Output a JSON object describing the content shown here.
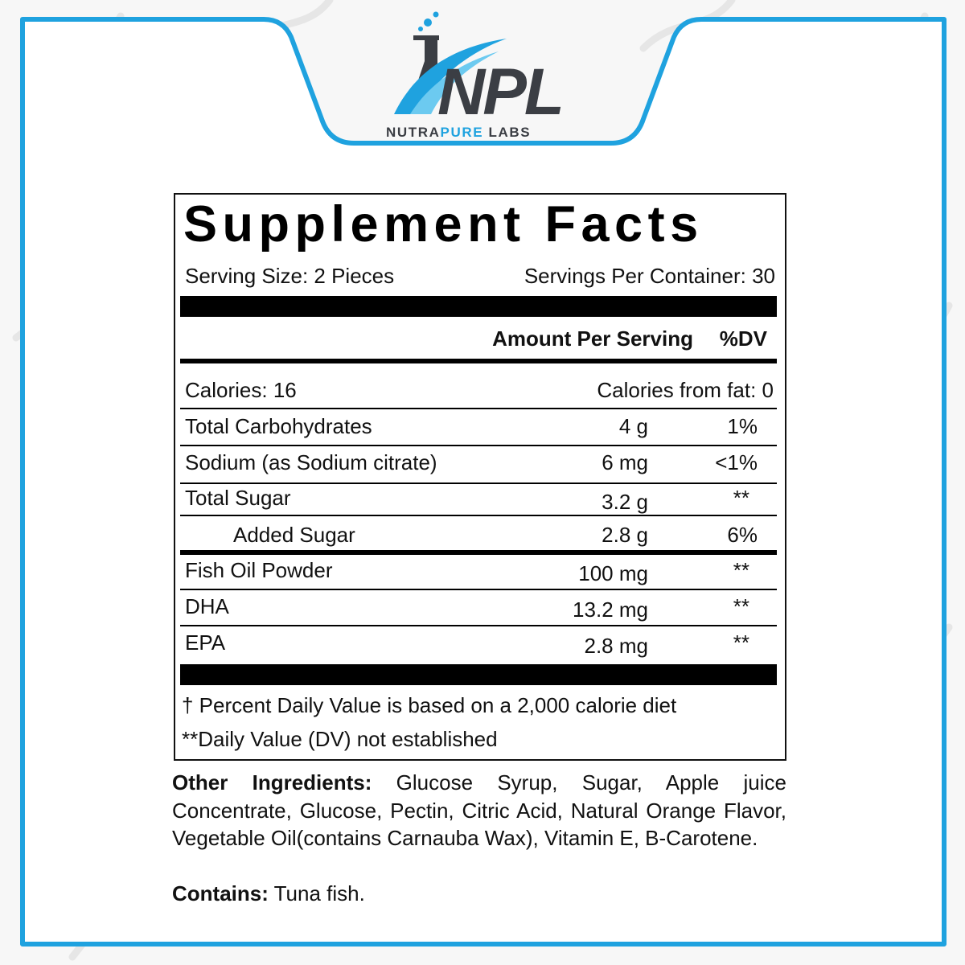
{
  "brand": {
    "logo_letters": "NPL",
    "tagline_part1": "NUTRA",
    "tagline_part2": "PURE",
    "tagline_part3": " LABS",
    "colors": {
      "frame": "#1fa2df",
      "logo_dark": "#3b3e44",
      "logo_blue": "#1fa2df"
    }
  },
  "facts": {
    "title": "Supplement Facts",
    "serving_size": "Serving Size: 2 Pieces",
    "servings_per_container": "Servings Per Container: 30",
    "header_amount": "Amount Per Serving",
    "header_dv": "%DV",
    "calories": "Calories: 16",
    "calories_from_fat": "Calories from fat: 0",
    "rows": [
      {
        "name": "Total Carbohydrates",
        "amount": "4 g",
        "dv": "1%"
      },
      {
        "name": "Sodium (as Sodium citrate)",
        "amount": "6 mg",
        "dv": "<1%"
      },
      {
        "name": "Total Sugar",
        "amount": "3.2 g",
        "dv": "**"
      },
      {
        "name": "Added Sugar",
        "amount": "2.8 g",
        "dv": "6%"
      },
      {
        "name": "Fish Oil Powder",
        "amount": "100 mg",
        "dv": "**"
      },
      {
        "name": "DHA",
        "amount": "13.2 mg",
        "dv": "**"
      },
      {
        "name": "EPA",
        "amount": "2.8 mg",
        "dv": "**"
      }
    ],
    "footnote_1": "† Percent Daily Value is based on a 2,000 calorie diet",
    "footnote_2": "**Daily Value (DV) not established"
  },
  "ingredients": {
    "label": "Other Ingredients:",
    "text": " Glucose Syrup, Sugar, Apple juice Concentrate, Glucose, Pectin, Citric Acid, Natural Orange Flavor, Vegetable Oil(contains Carnauba Wax), Vitamin E, B-Carotene.",
    "contains_label": "Contains:",
    "contains_text": " Tuna fish."
  }
}
